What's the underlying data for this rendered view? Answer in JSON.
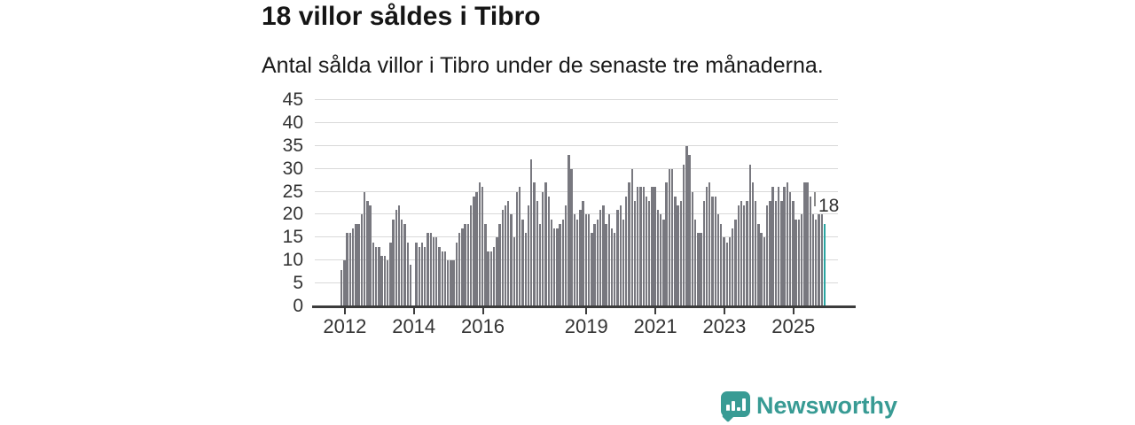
{
  "header": {
    "title": "18 villor såldes i Tibro",
    "subtitle": "Antal sålda villor i Tibro under de senaste tre månaderna."
  },
  "chart_data": {
    "type": "bar",
    "title": "18 villor såldes i Tibro",
    "subtitle": "Antal sålda villor i Tibro under de senaste tre månaderna.",
    "values": [
      8,
      10,
      16,
      16,
      17,
      18,
      18,
      20,
      25,
      23,
      22,
      14,
      13,
      13,
      11,
      11,
      10,
      14,
      19,
      21,
      22,
      19,
      18,
      14,
      9,
      0,
      14,
      13,
      14,
      13,
      16,
      16,
      15,
      15,
      13,
      12,
      12,
      10,
      10,
      10,
      14,
      16,
      17,
      18,
      18,
      22,
      24,
      25,
      27,
      26,
      18,
      12,
      12,
      13,
      15,
      18,
      21,
      22,
      23,
      20,
      15,
      25,
      26,
      19,
      16,
      22,
      32,
      27,
      23,
      18,
      25,
      27,
      24,
      19,
      17,
      17,
      18,
      19,
      22,
      33,
      30,
      20,
      19,
      21,
      23,
      20,
      20,
      16,
      18,
      19,
      21,
      22,
      18,
      20,
      17,
      16,
      21,
      22,
      19,
      24,
      27,
      30,
      23,
      26,
      26,
      26,
      24,
      23,
      26,
      26,
      21,
      20,
      19,
      27,
      30,
      30,
      24,
      22,
      23,
      31,
      35,
      33,
      25,
      19,
      16,
      16,
      23,
      26,
      27,
      24,
      24,
      20,
      18,
      15,
      14,
      15,
      17,
      19,
      22,
      23,
      22,
      23,
      31,
      27,
      23,
      18,
      16,
      15,
      22,
      23,
      26,
      23,
      26,
      23,
      26,
      27,
      25,
      23,
      19,
      19,
      20,
      27,
      27,
      24,
      20,
      19,
      20,
      20,
      18
    ],
    "highlight_last": true,
    "last_value_label": "18",
    "yticks": [
      0,
      5,
      10,
      15,
      20,
      25,
      30,
      35,
      40,
      45
    ],
    "ylim": [
      0,
      45
    ],
    "xticks": [
      {
        "label": "2012",
        "index": 1
      },
      {
        "label": "2014",
        "index": 25
      },
      {
        "label": "2016",
        "index": 49
      },
      {
        "label": "2019",
        "index": 85
      },
      {
        "label": "2021",
        "index": 109
      },
      {
        "label": "2023",
        "index": 133
      },
      {
        "label": "2025",
        "index": 157
      }
    ],
    "grid": true,
    "legend": "none",
    "colors": {
      "bar": "#78787f",
      "accent": "#29a5a1",
      "grid": "#d9d9d9",
      "axis": "#3c3c3c",
      "tick_text": "#333333",
      "brand": "#389b94"
    }
  },
  "annotation": {
    "label": "18"
  },
  "footer": {
    "brand": "Newsworthy"
  }
}
